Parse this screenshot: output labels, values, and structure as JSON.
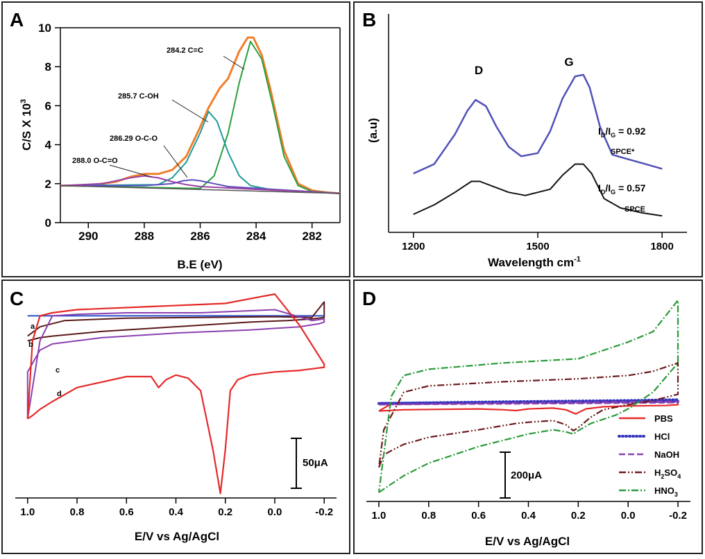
{
  "chart_data": [
    {
      "panel": "A",
      "type": "line",
      "xlabel": "B.E (eV)",
      "ylabel": "C/S X 10",
      "ylabel_sup": "3",
      "xlim": [
        291,
        281
      ],
      "ylim": [
        0,
        10
      ],
      "x_ticks": [
        "290",
        "288",
        "286",
        "284",
        "282"
      ],
      "y_ticks": [
        "0",
        "2",
        "4",
        "6",
        "8",
        "10"
      ],
      "annotations": [
        "284.2 C=C",
        "285.7 C-OH",
        "286.29 O-C-O",
        "288.0 O-C=O"
      ],
      "colors": {
        "envelope": "#f07f2a",
        "c_c": "#2a9d3c",
        "c_oh": "#1f9a9a",
        "o_c_o": "#5a4fc0",
        "o_c_o2": "#9b3fa3",
        "baseline": "#555555"
      },
      "series": [
        {
          "x": [
            291,
            290,
            289,
            288.5,
            288,
            287.5,
            287,
            286.5,
            286,
            285.7,
            285.3,
            285,
            284.6,
            284.3,
            284.1,
            283.8,
            283.5,
            283,
            282.5,
            282,
            281.5,
            281
          ],
          "values": [
            1.9,
            1.9,
            2.1,
            2.35,
            2.5,
            2.5,
            2.7,
            3.4,
            4.9,
            5.9,
            6.9,
            7.4,
            8.8,
            9.5,
            9.5,
            8.6,
            6.9,
            3.7,
            2.0,
            1.65,
            1.55,
            1.5
          ]
        },
        {
          "x": [
            291,
            286,
            285.5,
            285,
            284.6,
            284.2,
            283.8,
            283.4,
            283,
            282.5,
            282,
            281
          ],
          "values": [
            1.9,
            1.75,
            2.4,
            4.6,
            7.2,
            9.3,
            8.4,
            6.0,
            3.4,
            1.9,
            1.6,
            1.5
          ]
        },
        {
          "x": [
            291,
            287.5,
            287,
            286.5,
            286,
            285.7,
            285.4,
            285,
            284.6,
            284.2,
            283.5,
            281
          ],
          "values": [
            1.9,
            1.95,
            2.3,
            3.1,
            4.6,
            5.7,
            5.2,
            3.6,
            2.4,
            1.9,
            1.7,
            1.5
          ]
        },
        {
          "x": [
            291,
            288,
            287,
            286.6,
            286.29,
            286,
            285.5,
            285,
            281
          ],
          "values": [
            1.9,
            1.9,
            2.0,
            2.15,
            2.2,
            2.15,
            2.0,
            1.85,
            1.5
          ]
        },
        {
          "x": [
            291,
            289.5,
            289,
            288.5,
            288,
            287.5,
            287,
            286.5,
            286,
            281
          ],
          "values": [
            1.9,
            2.0,
            2.15,
            2.3,
            2.4,
            2.3,
            2.1,
            1.95,
            1.85,
            1.5
          ]
        },
        {
          "x": [
            291,
            281
          ],
          "values": [
            1.9,
            1.5
          ]
        }
      ]
    },
    {
      "panel": "B",
      "type": "line",
      "xlabel": "Wavelength cm",
      "xlabel_sup": "-1",
      "ylabel": "(a.u)",
      "xlim": [
        1140,
        1860
      ],
      "x_ticks": [
        "1200",
        "1500",
        "1800"
      ],
      "peak_labels": [
        "D",
        "G"
      ],
      "ratio_labels": [
        {
          "main": "I",
          "sub1": "D",
          "mid": "/I",
          "sub2": "G",
          "value": " = 0.92",
          "name": "SPCE*"
        },
        {
          "main": "I",
          "sub1": "D",
          "mid": "/I",
          "sub2": "G",
          "value": " = 0.57",
          "name": "SPCE"
        }
      ],
      "colors": {
        "spce_star": "#5050b8",
        "spce": "#111111"
      },
      "series": [
        {
          "x": [
            1200,
            1250,
            1300,
            1330,
            1350,
            1375,
            1400,
            1430,
            1460,
            1500,
            1530,
            1560,
            1590,
            1610,
            1625,
            1650,
            1680,
            1720,
            1760,
            1800
          ],
          "values": [
            0.3,
            0.36,
            0.55,
            0.7,
            0.77,
            0.73,
            0.6,
            0.47,
            0.41,
            0.43,
            0.57,
            0.78,
            0.92,
            0.93,
            0.85,
            0.6,
            0.42,
            0.39,
            0.36,
            0.33
          ]
        },
        {
          "x": [
            1200,
            1250,
            1300,
            1340,
            1360,
            1390,
            1430,
            1470,
            1500,
            1530,
            1560,
            1590,
            1610,
            1630,
            1660,
            1700,
            1750,
            1800
          ],
          "values": [
            0.04,
            0.1,
            0.18,
            0.25,
            0.25,
            0.22,
            0.18,
            0.16,
            0.18,
            0.2,
            0.29,
            0.36,
            0.36,
            0.3,
            0.14,
            0.08,
            0.05,
            0.03
          ]
        }
      ]
    },
    {
      "panel": "C",
      "type": "line",
      "xlabel": "E/V vs Ag/AgCl",
      "xlim": [
        1.05,
        -0.25
      ],
      "x_ticks": [
        "1.0",
        "0.8",
        "0.6",
        "0.4",
        "0.2",
        "0.0",
        "-0.2"
      ],
      "curve_labels": [
        "a",
        "b",
        "c",
        "d"
      ],
      "scale_bar": "50μA",
      "colors": {
        "a": "#2b4ec8",
        "b": "#5a1818",
        "c": "#8a3fb0",
        "d": "#e62828"
      },
      "series": [
        {
          "x": [
            1.0,
            -0.2
          ],
          "values": [
            36,
            36
          ]
        },
        {
          "x": [
            1.0,
            0.95,
            0.9,
            0.7,
            0.5,
            0.3,
            0.1,
            -0.05,
            -0.15,
            -0.2,
            -0.2,
            -0.15,
            0.0,
            0.3,
            0.6,
            0.85,
            0.95,
            1.0
          ],
          "values": [
            20,
            22,
            23,
            26,
            28,
            30,
            32,
            33,
            34,
            35,
            45,
            35,
            35.5,
            35,
            34.5,
            33,
            29,
            23
          ]
        },
        {
          "x": [
            1.0,
            1.0,
            0.95,
            0.9,
            0.7,
            0.4,
            0.1,
            -0.1,
            -0.18,
            -0.2,
            -0.2,
            -0.15,
            0.0,
            0.3,
            0.6,
            0.8,
            0.9,
            0.95,
            1.0
          ],
          "values": [
            -30,
            0,
            14,
            18,
            22,
            25,
            27,
            29,
            31,
            32,
            34,
            33,
            40,
            38,
            38,
            37,
            36,
            20,
            -30
          ]
        },
        {
          "x": [
            1.0,
            0.98,
            0.95,
            0.9,
            0.8,
            0.6,
            0.5,
            0.47,
            0.44,
            0.4,
            0.35,
            0.3,
            0.25,
            0.22,
            0.2,
            0.18,
            0.15,
            0.1,
            0.0,
            -0.1,
            -0.15,
            -0.2,
            -0.2,
            -0.1,
            0.0,
            0.2,
            0.5,
            0.8,
            0.9,
            0.95,
            0.98,
            1.0
          ],
          "values": [
            -30,
            -28,
            -24,
            -19,
            -10,
            -3,
            -3,
            -10,
            -5,
            -2,
            -4,
            -12,
            -50,
            -78,
            -50,
            -12,
            -5,
            -2,
            0,
            1,
            2,
            3,
            5,
            30,
            50,
            44,
            42,
            40,
            38,
            36,
            20,
            -30
          ]
        }
      ]
    },
    {
      "panel": "D",
      "type": "line",
      "xlabel": "E/V vs Ag/AgCl",
      "xlim": [
        1.05,
        -0.25
      ],
      "x_ticks": [
        "1.0",
        "0.8",
        "0.6",
        "0.4",
        "0.2",
        "0.0",
        "-0.2"
      ],
      "scale_bar": "200μA",
      "legend_position": "bottom-right",
      "legend": [
        {
          "name": "PBS",
          "color": "#e62828"
        },
        {
          "name": "HCl",
          "color": "#3535c0"
        },
        {
          "name": "NaOH",
          "color": "#8a3fb0"
        },
        {
          "name": "H2SO4",
          "main": "H",
          "sub1": "2",
          "mid": "SO",
          "sub2": "4",
          "color": "#6b1a1a"
        },
        {
          "name": "HNO3",
          "main": "HNO",
          "sub1": "3",
          "color": "#2a9a3a"
        }
      ],
      "series": [
        {
          "x": [
            1.0,
            0.9,
            0.6,
            0.5,
            0.45,
            0.4,
            0.3,
            0.25,
            0.21,
            0.17,
            0.1,
            0.0,
            -0.15,
            -0.2,
            -0.2,
            -0.15,
            0.0,
            0.5,
            0.95,
            1.0,
            1.0
          ],
          "values": [
            -15,
            -12,
            -10,
            -12,
            -14,
            -10,
            -8,
            -12,
            -22,
            -10,
            -5,
            -3,
            -2,
            0,
            8,
            10,
            8,
            5,
            2,
            -15,
            -15
          ]
        },
        {
          "x": [
            1.0,
            0.8,
            0.5,
            0.2,
            0.0,
            -0.2,
            -0.2,
            0.0,
            0.5,
            1.0
          ],
          "values": [
            3,
            4,
            5,
            6,
            7,
            8,
            12,
            10,
            7,
            3
          ]
        },
        {
          "x": [
            1.0,
            0.8,
            0.5,
            0.2,
            0.0,
            -0.2,
            -0.2,
            0.0,
            0.5,
            1.0
          ],
          "values": [
            0,
            1,
            2,
            3,
            4,
            5,
            8,
            7,
            4,
            0
          ]
        },
        {
          "x": [
            1.0,
            0.98,
            0.95,
            0.9,
            0.8,
            0.6,
            0.5,
            0.45,
            0.4,
            0.3,
            0.25,
            0.22,
            0.2,
            0.15,
            0.1,
            0.0,
            -0.1,
            -0.2,
            -0.2,
            -0.1,
            0.0,
            0.2,
            0.5,
            0.8,
            0.9,
            0.98,
            1.0
          ],
          "values": [
            -150,
            -120,
            -110,
            -95,
            -78,
            -60,
            -50,
            -45,
            -42,
            -38,
            -48,
            -62,
            -55,
            -30,
            -12,
            0,
            10,
            25,
            100,
            80,
            70,
            62,
            55,
            45,
            30,
            -60,
            -150
          ]
        },
        {
          "x": [
            1.0,
            0.95,
            0.9,
            0.8,
            0.6,
            0.4,
            0.3,
            0.25,
            0.22,
            0.2,
            0.15,
            0.05,
            0.0,
            -0.1,
            -0.2,
            -0.2,
            -0.1,
            0.0,
            0.2,
            0.5,
            0.8,
            0.9,
            0.95,
            1.0
          ],
          "values": [
            -210,
            -190,
            -170,
            -140,
            -100,
            -70,
            -60,
            -65,
            -70,
            -62,
            -45,
            -25,
            -10,
            30,
            100,
            250,
            175,
            150,
            110,
            100,
            85,
            70,
            20,
            -210
          ]
        }
      ]
    }
  ]
}
